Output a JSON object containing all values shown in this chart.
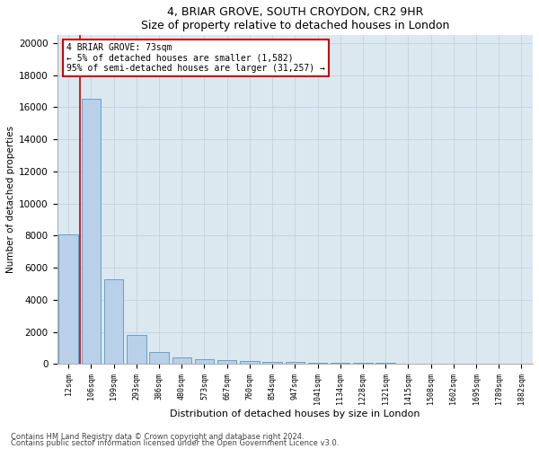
{
  "title1": "4, BRIAR GROVE, SOUTH CROYDON, CR2 9HR",
  "title2": "Size of property relative to detached houses in London",
  "xlabel": "Distribution of detached houses by size in London",
  "ylabel": "Number of detached properties",
  "bar_labels": [
    "12sqm",
    "106sqm",
    "199sqm",
    "293sqm",
    "386sqm",
    "480sqm",
    "573sqm",
    "667sqm",
    "760sqm",
    "854sqm",
    "947sqm",
    "1041sqm",
    "1134sqm",
    "1228sqm",
    "1321sqm",
    "1415sqm",
    "1508sqm",
    "1602sqm",
    "1695sqm",
    "1789sqm",
    "1882sqm"
  ],
  "bar_values": [
    8100,
    16500,
    5300,
    1800,
    750,
    400,
    300,
    250,
    200,
    150,
    110,
    90,
    75,
    60,
    50,
    40,
    30,
    20,
    15,
    10,
    8
  ],
  "bar_color": "#b8d0e8",
  "bar_edge_color": "#6aa0c8",
  "annotation_line1": "4 BRIAR GROVE: 73sqm",
  "annotation_line2": "← 5% of detached houses are smaller (1,582)",
  "annotation_line3": "95% of semi-detached houses are larger (31,257) →",
  "annotation_box_color": "#ffffff",
  "annotation_edge_color": "#cc0000",
  "redline_color": "#cc0000",
  "ylim": [
    0,
    20500
  ],
  "yticks": [
    0,
    2000,
    4000,
    6000,
    8000,
    10000,
    12000,
    14000,
    16000,
    18000,
    20000
  ],
  "footnote1": "Contains HM Land Registry data © Crown copyright and database right 2024.",
  "footnote2": "Contains public sector information licensed under the Open Government Licence v3.0.",
  "background_color": "#ffffff",
  "plot_bg_color": "#dce8f0",
  "grid_color": "#c0ccd8"
}
